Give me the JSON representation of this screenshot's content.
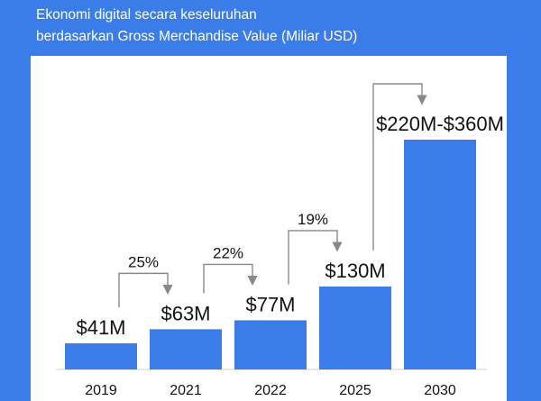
{
  "header": {
    "title_line1": "Ekonomi digital secara keseluruhan",
    "title_line2": "berdasarkan Gross Merchandise Value (Miliar USD)"
  },
  "colors": {
    "background": "#3b7de8",
    "bar": "#3b7de8",
    "panel": "#ffffff",
    "arrow": "#888888"
  },
  "chart_data": {
    "type": "bar",
    "title": "Ekonomi digital secara keseluruhan berdasarkan Gross Merchandise Value (Miliar USD)",
    "categories": [
      "2019",
      "2021",
      "2022",
      "2025",
      "2030"
    ],
    "values": [
      41,
      63,
      77,
      130,
      360
    ],
    "value_labels": [
      "$41M",
      "$63M",
      "$77M",
      "$130M",
      "$220M-$360M"
    ],
    "growth_annotations": [
      {
        "from": "2019",
        "to": "2021",
        "label": "25%"
      },
      {
        "from": "2021",
        "to": "2022",
        "label": "22%"
      },
      {
        "from": "2022",
        "to": "2025",
        "label": "19%"
      },
      {
        "from": "2025",
        "to": "2030",
        "label": ""
      }
    ],
    "xlabel": "",
    "ylabel": ""
  }
}
